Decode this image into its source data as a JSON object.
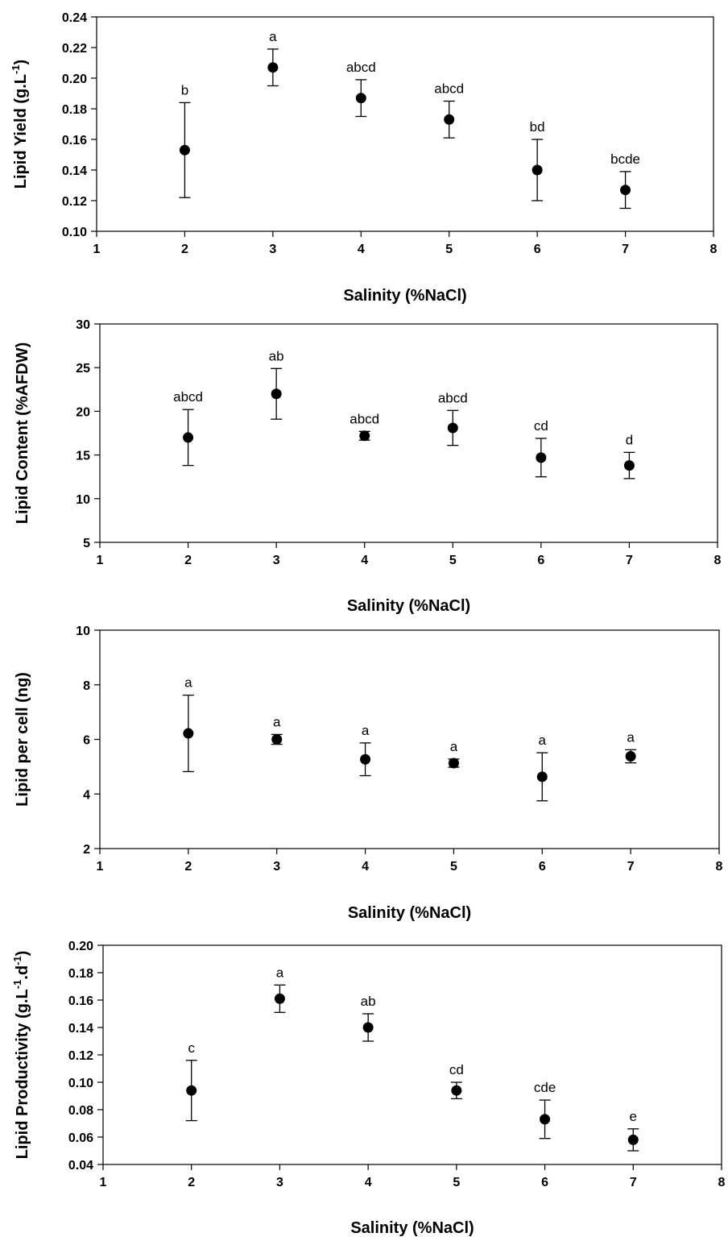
{
  "chart_data": [
    {
      "type": "scatter",
      "xlabel": "Salinity (%NaCl)",
      "ylabel": "Lipid Yield (g.L",
      "ylabel_sup": "-1",
      "ylabel_end": ")",
      "xlim": [
        1,
        8
      ],
      "ylim": [
        0.1,
        0.24
      ],
      "x_ticks": [
        1,
        2,
        3,
        4,
        5,
        6,
        7,
        8
      ],
      "x_tick_labels": [
        "1",
        "2",
        "3",
        "4",
        "5",
        "6",
        "7",
        "8"
      ],
      "y_ticks": [
        0.1,
        0.12,
        0.14,
        0.16,
        0.18,
        0.2,
        0.22,
        0.24
      ],
      "y_tick_labels": [
        "0.10",
        "0.12",
        "0.14",
        "0.16",
        "0.18",
        "0.20",
        "0.22",
        "0.24"
      ],
      "grid": false,
      "points": [
        {
          "x": 2,
          "y": 0.153,
          "err": 0.031,
          "label": "b"
        },
        {
          "x": 3,
          "y": 0.207,
          "err": 0.012,
          "label": "a"
        },
        {
          "x": 4,
          "y": 0.187,
          "err": 0.012,
          "label": "abcd"
        },
        {
          "x": 5,
          "y": 0.173,
          "err": 0.012,
          "label": "abcd"
        },
        {
          "x": 6,
          "y": 0.14,
          "err": 0.02,
          "label": "bd"
        },
        {
          "x": 7,
          "y": 0.127,
          "err": 0.012,
          "label": "bcde"
        }
      ]
    },
    {
      "type": "scatter",
      "xlabel": "Salinity (%NaCl)",
      "ylabel": "Lipid Content (%AFDW)",
      "ylabel_sup": "",
      "ylabel_end": "",
      "xlim": [
        1,
        8
      ],
      "ylim": [
        5,
        30
      ],
      "x_ticks": [
        1,
        2,
        3,
        4,
        5,
        6,
        7,
        8
      ],
      "x_tick_labels": [
        "1",
        "2",
        "3",
        "4",
        "5",
        "6",
        "7",
        "8"
      ],
      "y_ticks": [
        5,
        10,
        15,
        20,
        25,
        30
      ],
      "y_tick_labels": [
        "5",
        "10",
        "15",
        "20",
        "25",
        "30"
      ],
      "grid": false,
      "points": [
        {
          "x": 2,
          "y": 17.0,
          "err": 3.2,
          "label": "abcd"
        },
        {
          "x": 3,
          "y": 22.0,
          "err": 2.9,
          "label": "ab"
        },
        {
          "x": 4,
          "y": 17.2,
          "err": 0.5,
          "label": "abcd"
        },
        {
          "x": 5,
          "y": 18.1,
          "err": 2.0,
          "label": "abcd"
        },
        {
          "x": 6,
          "y": 14.7,
          "err": 2.2,
          "label": "cd"
        },
        {
          "x": 7,
          "y": 13.8,
          "err": 1.5,
          "label": "d"
        }
      ]
    },
    {
      "type": "scatter",
      "xlabel": "Salinity (%NaCl)",
      "ylabel": "Lipid per cell (ng)",
      "ylabel_sup": "",
      "ylabel_end": "",
      "xlim": [
        1,
        8
      ],
      "ylim": [
        2,
        10
      ],
      "x_ticks": [
        1,
        2,
        3,
        4,
        5,
        6,
        7,
        8
      ],
      "x_tick_labels": [
        "1",
        "2",
        "3",
        "4",
        "5",
        "6",
        "7",
        "8"
      ],
      "y_ticks": [
        2,
        4,
        6,
        8,
        10
      ],
      "y_tick_labels": [
        "2",
        "4",
        "6",
        "8",
        "10"
      ],
      "grid": false,
      "points": [
        {
          "x": 2,
          "y": 6.22,
          "err": 1.4,
          "label": "a"
        },
        {
          "x": 3,
          "y": 6.0,
          "err": 0.18,
          "label": "a"
        },
        {
          "x": 4,
          "y": 5.27,
          "err": 0.6,
          "label": "a"
        },
        {
          "x": 5,
          "y": 5.13,
          "err": 0.15,
          "label": "a"
        },
        {
          "x": 6,
          "y": 4.63,
          "err": 0.88,
          "label": "a"
        },
        {
          "x": 7,
          "y": 5.38,
          "err": 0.24,
          "label": "a"
        }
      ]
    },
    {
      "type": "scatter",
      "xlabel": "Salinity (%NaCl)",
      "ylabel": "Lipid Productivity (g.L",
      "ylabel_sup": "-1",
      "ylabel_mid": ".d",
      "ylabel_sup2": "-1",
      "ylabel_end": ")",
      "xlim": [
        1,
        8
      ],
      "ylim": [
        0.04,
        0.2
      ],
      "x_ticks": [
        1,
        2,
        3,
        4,
        5,
        6,
        7,
        8
      ],
      "x_tick_labels": [
        "1",
        "2",
        "3",
        "4",
        "5",
        "6",
        "7",
        "8"
      ],
      "y_ticks": [
        0.04,
        0.06,
        0.08,
        0.1,
        0.12,
        0.14,
        0.16,
        0.18,
        0.2
      ],
      "y_tick_labels": [
        "0.04",
        "0.06",
        "0.08",
        "0.10",
        "0.12",
        "0.14",
        "0.16",
        "0.18",
        "0.20"
      ],
      "grid": false,
      "points": [
        {
          "x": 2,
          "y": 0.094,
          "err": 0.022,
          "label": "c"
        },
        {
          "x": 3,
          "y": 0.161,
          "err": 0.01,
          "label": "a"
        },
        {
          "x": 4,
          "y": 0.14,
          "err": 0.01,
          "label": "ab"
        },
        {
          "x": 5,
          "y": 0.094,
          "err": 0.006,
          "label": "cd"
        },
        {
          "x": 6,
          "y": 0.073,
          "err": 0.014,
          "label": "cde"
        },
        {
          "x": 7,
          "y": 0.058,
          "err": 0.008,
          "label": "e"
        }
      ]
    }
  ]
}
